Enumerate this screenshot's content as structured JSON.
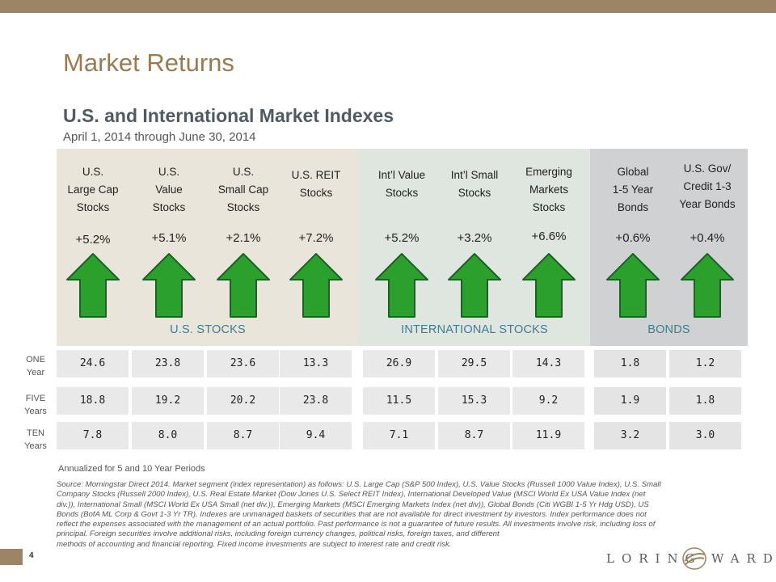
{
  "header": {
    "title": "Market Returns",
    "subtitle": "U.S. and International Market Indexes",
    "date_range": "April 1, 2014 through June 30, 2014"
  },
  "colors": {
    "accent_tan": "#9c8465",
    "arrow_green": "#2ca02c",
    "section_teal": "#3d7d90"
  },
  "sections": {
    "us": "U.S. STOCKS",
    "intl": "INTERNATIONAL STOCKS",
    "bonds": "BONDS"
  },
  "row_labels": [
    {
      "a": "ONE",
      "b": "Year"
    },
    {
      "a": "FIVE",
      "b": "Years"
    },
    {
      "a": "TEN",
      "b": "Years"
    }
  ],
  "columns": [
    {
      "name": [
        "U.S.",
        "Large Cap",
        "Stocks"
      ],
      "ret": "+5.2%",
      "one": "24.6",
      "five": "18.8",
      "ten": "7.8"
    },
    {
      "name": [
        "U.S.",
        "Value",
        "Stocks"
      ],
      "ret": "+5.1%",
      "one": "23.8",
      "five": "19.2",
      "ten": "8.0"
    },
    {
      "name": [
        "U.S.",
        "Small Cap",
        "Stocks"
      ],
      "ret": "+2.1%",
      "one": "23.6",
      "five": "20.2",
      "ten": "8.7"
    },
    {
      "name": [
        "U.S. REIT",
        "Stocks"
      ],
      "ret": "+7.2%",
      "one": "13.3",
      "five": "23.8",
      "ten": "9.4"
    },
    {
      "name": [
        "Int’l Value",
        "Stocks"
      ],
      "ret": "+5.2%",
      "one": "26.9",
      "five": "11.5",
      "ten": "7.1"
    },
    {
      "name": [
        "Int’l Small",
        "Stocks"
      ],
      "ret": "+3.2%",
      "one": "29.5",
      "five": "15.3",
      "ten": "8.7"
    },
    {
      "name": [
        "Emerging",
        "Markets",
        "Stocks"
      ],
      "ret": "+6.6%",
      "one": "14.3",
      "five": "9.2",
      "ten": "11.9"
    },
    {
      "name": [
        "Global",
        "1-5 Year",
        "Bonds"
      ],
      "ret": "+0.6%",
      "one": "1.8",
      "five": "1.9",
      "ten": "3.2"
    },
    {
      "name": [
        "U.S. Gov/",
        "Credit 1-3",
        "Year Bonds"
      ],
      "ret": "+0.4%",
      "one": "1.2",
      "five": "1.8",
      "ten": "3.0"
    }
  ],
  "annualized_note": "Annualized for 5 and 10 Year Periods",
  "source_lines": [
    "Source: Morningstar Direct 2014. Market segment (index representation) as follows: U.S. Large Cap (S&P 500 Index), U.S. Value Stocks (Russell 1000 Value Index), U.S. Small",
    "Company Stocks (Russell 2000 Index), U.S. Real Estate Market (Dow Jones U.S. Select REIT Index), International Developed Value (MSCI World Ex USA Value Index (net",
    "div.)), International Small (MSCI World Ex USA Small (net div.)), Emerging Markets (MSCI Emerging Markets Index (net div)), Global Bonds (Citi WGBI 1-5 Yr Hdg USD), US",
    "Bonds (BofA ML Corp & Govt 1-3 Yr TR). Indexes are unmanaged baskets of securities that are not available for direct investment by investors. Index performance does not",
    "reflect the expenses associated with the management of an actual portfolio. Past performance is not a guarantee of future results. All investments involve risk, including loss of",
    "principal. Foreign securities involve additional risks, including foreign currency changes, political risks, foreign taxes, and different",
    "methods of accounting and financial reporting. Fixed income investments are subject to interest rate and credit risk."
  ],
  "footer": {
    "page_number": "4",
    "logo_text": "LORING WARD",
    "logo_left": "LORING",
    "logo_right": "WARD"
  }
}
